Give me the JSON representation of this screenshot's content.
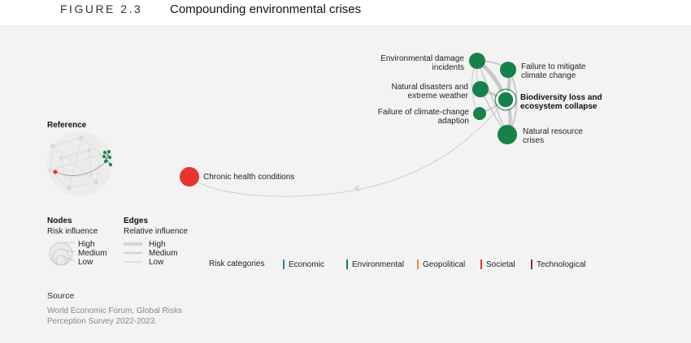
{
  "header": {
    "figure_label": "FIGURE 2.3",
    "title": "Compounding environmental crises"
  },
  "nodes": {
    "environmental_damage": "Environmental damage incidents",
    "failure_mitigate": "Failure to mitigate climate change",
    "natural_disasters": "Natural disasters and extreme weather",
    "biodiversity": "Biodiversity loss and ecosystem collapse",
    "failure_adaption": "Failure of climate-change adaption",
    "natural_resource": "Natural resource crises",
    "chronic_health": "Chronic health conditions"
  },
  "reference": {
    "label": "Reference"
  },
  "legend": {
    "nodes": {
      "title": "Nodes",
      "subtitle": "Risk influence",
      "high": "High",
      "medium": "Medium",
      "low": "Low"
    },
    "edges": {
      "title": "Edges",
      "subtitle": "Relative influence",
      "high": "High",
      "medium": "Medium",
      "low": "Low"
    },
    "categories_label": "Risk categories",
    "categories": [
      {
        "name": "Economic",
        "color": "#2f7fb6"
      },
      {
        "name": "Environmental",
        "color": "#16824a"
      },
      {
        "name": "Geopolitical",
        "color": "#ef8a3c"
      },
      {
        "name": "Societal",
        "color": "#e8332f"
      },
      {
        "name": "Technological",
        "color": "#8b1f6c"
      }
    ]
  },
  "source": {
    "label": "Source",
    "text_line1": "World Economic Forum, Global Risks",
    "text_line2": "Perception Survey 2022-2023."
  },
  "colors": {
    "environmental": "#16824a",
    "societal": "#e8332f",
    "edge": "#c8c8c8",
    "background": "#f3f3f3"
  }
}
